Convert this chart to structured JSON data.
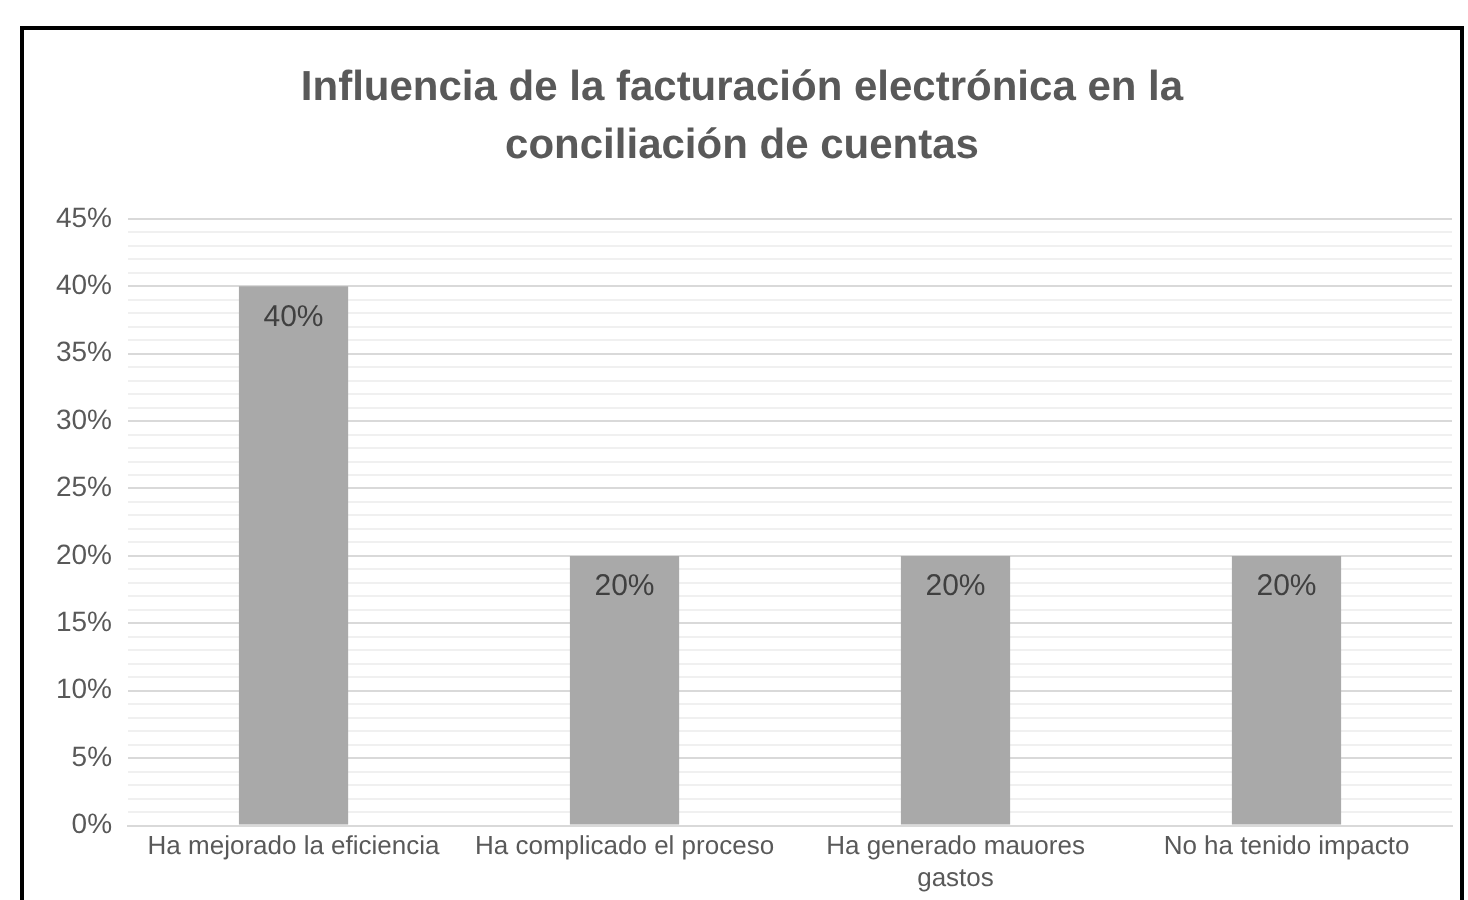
{
  "chart_data": {
    "type": "bar",
    "title": "Influencia de la facturación electrónica en la conciliación de cuentas",
    "categories": [
      "Ha mejorado la eficiencia",
      "Ha complicado el proceso",
      "Ha generado mauores gastos",
      "No ha tenido impacto"
    ],
    "values": [
      40,
      20,
      20,
      20
    ],
    "color": "#a9a9a9",
    "value_labels": [
      "40%",
      "20%",
      "20%",
      "20%"
    ],
    "ylim": [
      0,
      45
    ],
    "yticks": [
      {
        "value": 0,
        "label": "0%"
      },
      {
        "value": 1,
        "label": null
      },
      {
        "value": 2,
        "label": null
      },
      {
        "value": 3,
        "label": null
      },
      {
        "value": 4,
        "label": null
      },
      {
        "value": 5,
        "label": "5%"
      },
      {
        "value": 6,
        "label": null
      },
      {
        "value": 7,
        "label": null
      },
      {
        "value": 8,
        "label": null
      },
      {
        "value": 9,
        "label": null
      },
      {
        "value": 10,
        "label": "10%"
      },
      {
        "value": 11,
        "label": null
      },
      {
        "value": 12,
        "label": null
      },
      {
        "value": 13,
        "label": null
      },
      {
        "value": 14,
        "label": null
      },
      {
        "value": 15,
        "label": "15%"
      },
      {
        "value": 16,
        "label": null
      },
      {
        "value": 17,
        "label": null
      },
      {
        "value": 18,
        "label": null
      },
      {
        "value": 19,
        "label": null
      },
      {
        "value": 20,
        "label": "20%"
      },
      {
        "value": 21,
        "label": null
      },
      {
        "value": 22,
        "label": null
      },
      {
        "value": 23,
        "label": null
      },
      {
        "value": 24,
        "label": null
      },
      {
        "value": 25,
        "label": "25%"
      },
      {
        "value": 26,
        "label": null
      },
      {
        "value": 27,
        "label": null
      },
      {
        "value": 28,
        "label": null
      },
      {
        "value": 29,
        "label": null
      },
      {
        "value": 30,
        "label": "30%"
      },
      {
        "value": 31,
        "label": null
      },
      {
        "value": 32,
        "label": null
      },
      {
        "value": 33,
        "label": null
      },
      {
        "value": 34,
        "label": null
      },
      {
        "value": 35,
        "label": "35%"
      },
      {
        "value": 36,
        "label": null
      },
      {
        "value": 37,
        "label": null
      },
      {
        "value": 38,
        "label": null
      },
      {
        "value": 39,
        "label": null
      },
      {
        "value": 40,
        "label": "40%"
      },
      {
        "value": 41,
        "label": null
      },
      {
        "value": 42,
        "label": null
      },
      {
        "value": 43,
        "label": null
      },
      {
        "value": 44,
        "label": null
      },
      {
        "value": 45,
        "label": "45%"
      }
    ],
    "grid": "y",
    "legend": false
  }
}
